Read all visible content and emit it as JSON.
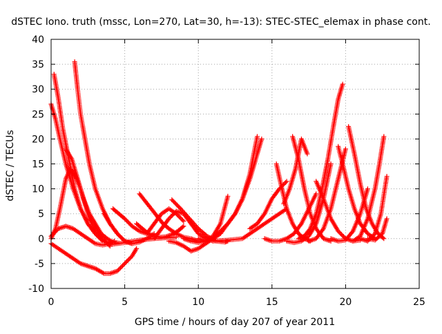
{
  "chart_data": {
    "type": "scatter",
    "title": "dSTEC Iono. truth (mssc, Lon=270, Lat=30, h=-13): STEC-STEC_elemax in phase cont.",
    "xlabel": "GPS time / hours of day 207 of year 2011",
    "ylabel": "dSTEC  / TECUs",
    "xlim": [
      0,
      25
    ],
    "ylim": [
      -10,
      40
    ],
    "xticks": [
      0,
      5,
      10,
      15,
      20,
      25
    ],
    "yticks": [
      -10,
      -5,
      0,
      5,
      10,
      15,
      20,
      25,
      30,
      35,
      40
    ],
    "grid": true,
    "grid_style": "dotted",
    "marker": "+",
    "series_color": "#ff0000",
    "series": [
      {
        "x": [
          0.0,
          0.5,
          1.0,
          1.5,
          2.0,
          2.5,
          3.0,
          3.5,
          4.0,
          4.3
        ],
        "y": [
          0.5,
          2.0,
          2.5,
          2.0,
          1.0,
          0.0,
          -1.0,
          -1.3,
          -1.0,
          -0.5
        ]
      },
      {
        "x": [
          0.0,
          0.5,
          1.0,
          1.5,
          2.0,
          2.5,
          3.0,
          3.3,
          3.6,
          4.0,
          4.5,
          5.0,
          5.5,
          5.8
        ],
        "y": [
          -1.0,
          -2.0,
          -3.0,
          -4.0,
          -5.0,
          -5.5,
          -6.0,
          -6.5,
          -7.0,
          -7.0,
          -6.5,
          -5.0,
          -3.5,
          -2.0
        ]
      },
      {
        "x": [
          0.0,
          0.3,
          0.6,
          1.0,
          1.5,
          2.0,
          2.5,
          3.0,
          3.5,
          4.0
        ],
        "y": [
          27.0,
          24.0,
          20.0,
          15.0,
          10.0,
          6.0,
          3.0,
          1.0,
          -0.5,
          -0.8
        ]
      },
      {
        "x": [
          0.2,
          0.5,
          0.8,
          1.2,
          1.6,
          2.0,
          2.5,
          3.0,
          3.5
        ],
        "y": [
          33.0,
          28.0,
          22.0,
          16.0,
          10.0,
          6.0,
          3.0,
          1.0,
          -0.5
        ]
      },
      {
        "x": [
          1.6,
          1.8,
          2.0,
          2.3,
          2.6,
          3.0,
          3.5,
          4.0,
          4.5,
          5.0,
          5.5
        ],
        "y": [
          35.5,
          30.0,
          25.0,
          20.0,
          15.0,
          10.0,
          6.0,
          3.0,
          1.0,
          -0.5,
          -1.0
        ]
      },
      {
        "x": [
          0.0,
          0.3,
          0.6,
          1.0,
          1.3,
          1.6,
          2.0,
          2.3,
          2.6,
          3.0,
          3.5,
          4.0
        ],
        "y": [
          0.0,
          2.0,
          6.0,
          12.0,
          14.0,
          13.0,
          10.0,
          7.0,
          4.0,
          2.0,
          0.0,
          -1.5
        ]
      },
      {
        "x": [
          1.0,
          1.4,
          1.8,
          2.2,
          2.6,
          3.0,
          3.4,
          3.8,
          4.2,
          4.6
        ],
        "y": [
          18.0,
          16.0,
          12.0,
          8.0,
          5.0,
          3.0,
          1.0,
          0.0,
          -0.7,
          -0.9
        ]
      },
      {
        "x": [
          3.6,
          4.0,
          4.5,
          5.0,
          5.5,
          6.0,
          6.5,
          7.0
        ],
        "y": [
          5.0,
          3.0,
          1.0,
          -0.5,
          -1.0,
          -0.7,
          0.0,
          1.0
        ]
      },
      {
        "x": [
          4.0,
          5.0,
          6.0,
          7.0,
          8.0,
          8.5
        ],
        "y": [
          -1.2,
          -0.8,
          -0.3,
          0.0,
          0.2,
          0.3
        ]
      },
      {
        "x": [
          4.2,
          4.6,
          5.0,
          5.5,
          6.0,
          6.5
        ],
        "y": [
          6.0,
          5.0,
          4.0,
          2.5,
          1.5,
          1.0
        ]
      },
      {
        "x": [
          5.8,
          6.2,
          6.6,
          7.0,
          7.4,
          7.8,
          8.2,
          8.6,
          9.0
        ],
        "y": [
          3.0,
          2.0,
          1.0,
          0.5,
          0.3,
          0.4,
          0.8,
          1.5,
          2.5
        ]
      },
      {
        "x": [
          6.0,
          6.4,
          6.8,
          7.2,
          7.6,
          8.0,
          8.5,
          9.0,
          9.5,
          10.0
        ],
        "y": [
          9.0,
          7.5,
          6.0,
          4.5,
          3.0,
          2.0,
          1.0,
          0.3,
          0.0,
          -0.5
        ]
      },
      {
        "x": [
          6.5,
          7.0,
          7.5,
          8.0,
          8.5,
          9.0
        ],
        "y": [
          1.0,
          3.0,
          5.0,
          6.0,
          5.0,
          3.5
        ]
      },
      {
        "x": [
          7.0,
          7.5,
          8.0,
          8.5,
          9.0,
          9.5,
          10.0,
          10.5,
          11.0
        ],
        "y": [
          0.0,
          2.0,
          4.0,
          5.5,
          5.0,
          3.0,
          1.0,
          0.0,
          -0.5
        ]
      },
      {
        "x": [
          8.2,
          8.8,
          9.4,
          10.0,
          10.6,
          11.2,
          11.8,
          12.0
        ],
        "y": [
          7.8,
          6.0,
          4.0,
          2.0,
          0.5,
          -0.5,
          -0.7,
          -0.5
        ]
      },
      {
        "x": [
          8.0,
          8.5,
          9.0,
          9.5,
          10.0,
          10.5,
          11.0,
          11.5
        ],
        "y": [
          -0.5,
          -0.8,
          -1.5,
          -2.5,
          -2.0,
          -1.0,
          0.0,
          1.0
        ]
      },
      {
        "x": [
          9.0,
          9.5,
          10.0,
          10.5,
          11.0,
          11.5,
          12.0,
          12.5,
          13.0,
          13.5,
          14.0
        ],
        "y": [
          0.0,
          -0.5,
          -0.8,
          -0.5,
          0.2,
          1.5,
          3.0,
          5.0,
          8.0,
          13.0,
          20.5
        ]
      },
      {
        "x": [
          10.0,
          10.5,
          11.0,
          11.5,
          12.0
        ],
        "y": [
          0.0,
          -0.5,
          0.5,
          3.0,
          8.5
        ]
      },
      {
        "x": [
          10.5,
          11.0,
          11.5,
          12.0,
          12.5,
          13.0,
          13.5,
          14.0,
          14.3
        ],
        "y": [
          -0.5,
          0.0,
          1.0,
          3.0,
          5.0,
          8.0,
          12.0,
          17.0,
          20.0
        ]
      },
      {
        "x": [
          11.0,
          12.0,
          13.0,
          14.0,
          15.0,
          15.5,
          16.0
        ],
        "y": [
          -0.5,
          -0.3,
          0.0,
          2.0,
          4.0,
          5.0,
          6.0
        ]
      },
      {
        "x": [
          13.5,
          14.0,
          14.5,
          15.0,
          15.5,
          16.0
        ],
        "y": [
          2.0,
          3.0,
          5.0,
          8.0,
          10.0,
          11.5
        ]
      },
      {
        "x": [
          14.5,
          15.0,
          15.5,
          16.0,
          16.5,
          17.0,
          17.5,
          18.0
        ],
        "y": [
          0.0,
          -0.5,
          -0.5,
          0.0,
          1.0,
          3.0,
          6.0,
          9.0
        ]
      },
      {
        "x": [
          15.3,
          15.6,
          16.0,
          16.4,
          16.8,
          17.2,
          17.6
        ],
        "y": [
          15.0,
          11.0,
          6.0,
          3.0,
          1.0,
          0.0,
          -0.5
        ]
      },
      {
        "x": [
          15.8,
          16.2,
          16.6,
          17.0,
          17.4
        ],
        "y": [
          7.0,
          10.0,
          14.0,
          20.0,
          17.0
        ]
      },
      {
        "x": [
          16.4,
          16.8,
          17.2,
          17.6,
          18.0,
          18.5,
          19.0
        ],
        "y": [
          20.5,
          16.0,
          10.0,
          5.0,
          2.0,
          0.0,
          -0.5
        ]
      },
      {
        "x": [
          16.0,
          16.5,
          17.0,
          17.5,
          18.0,
          18.5,
          19.0
        ],
        "y": [
          -0.5,
          -0.8,
          -0.5,
          0.5,
          3.0,
          8.0,
          15.0
        ]
      },
      {
        "x": [
          16.8,
          17.2,
          17.6,
          18.0,
          18.4,
          18.8,
          19.2,
          19.5,
          19.8
        ],
        "y": [
          0.0,
          0.5,
          2.0,
          5.0,
          10.0,
          16.0,
          23.0,
          28.0,
          31.0
        ]
      },
      {
        "x": [
          17.5,
          18.0,
          18.5,
          19.0,
          19.5,
          20.0
        ],
        "y": [
          -0.5,
          0.0,
          2.0,
          6.0,
          12.0,
          18.0
        ]
      },
      {
        "x": [
          18.0,
          18.5,
          19.0,
          19.5,
          20.0,
          20.5,
          21.0
        ],
        "y": [
          11.5,
          8.0,
          4.0,
          1.5,
          0.0,
          -0.5,
          -0.3
        ]
      },
      {
        "x": [
          19.5,
          19.8,
          20.2,
          20.6,
          21.0,
          21.5,
          22.0
        ],
        "y": [
          18.5,
          15.0,
          10.0,
          6.0,
          3.0,
          1.0,
          0.0
        ]
      },
      {
        "x": [
          19.0,
          19.5,
          20.0,
          20.5,
          21.0,
          21.5
        ],
        "y": [
          0.0,
          -0.5,
          -0.3,
          1.5,
          5.0,
          10.0
        ]
      },
      {
        "x": [
          20.2,
          20.6,
          21.0,
          21.4,
          21.8,
          22.2,
          22.6
        ],
        "y": [
          22.5,
          17.0,
          11.0,
          6.0,
          3.0,
          1.0,
          0.0
        ]
      },
      {
        "x": [
          20.5,
          21.0,
          21.5,
          22.0,
          22.3,
          22.6
        ],
        "y": [
          -0.5,
          0.5,
          4.0,
          10.0,
          15.0,
          20.5
        ]
      },
      {
        "x": [
          21.0,
          21.5,
          22.0,
          22.4,
          22.8
        ],
        "y": [
          0.0,
          -0.5,
          1.0,
          5.0,
          12.5
        ]
      },
      {
        "x": [
          21.5,
          22.0,
          22.5,
          22.8
        ],
        "y": [
          0.0,
          -0.3,
          1.0,
          4.0
        ]
      }
    ]
  }
}
